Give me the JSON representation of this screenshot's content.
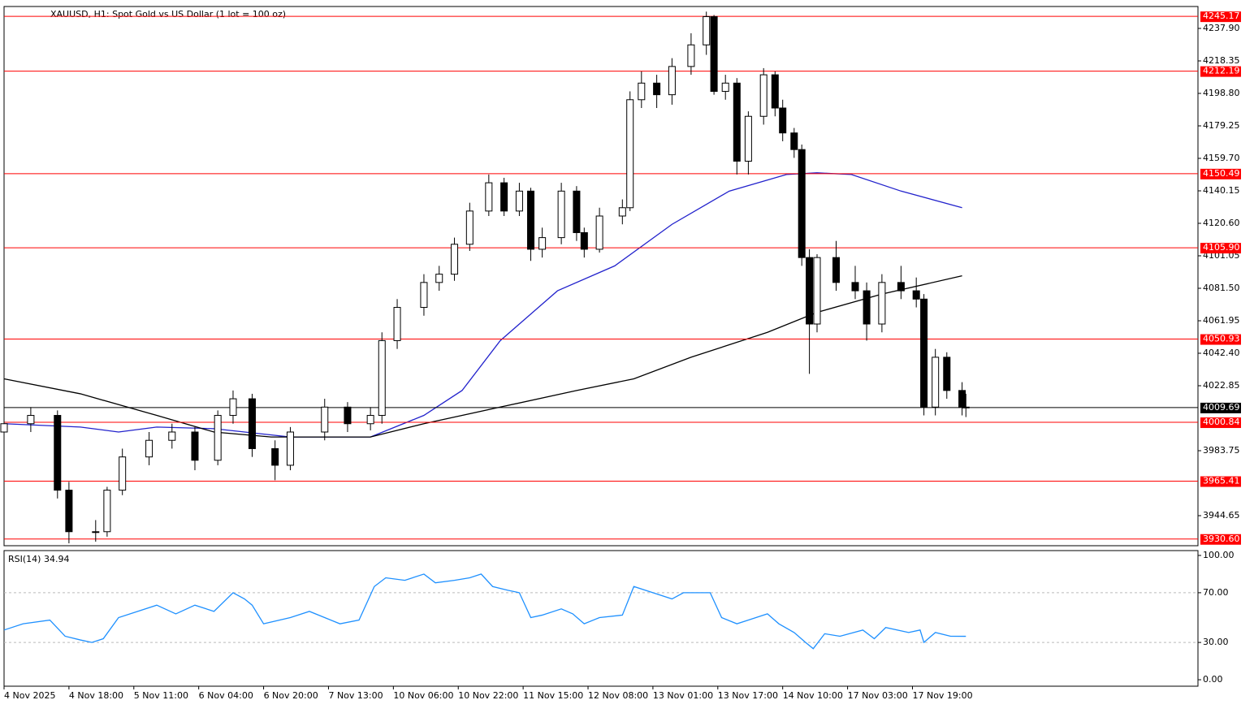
{
  "chart_data": {
    "type": "candlestick",
    "title": "XAUUSD, H1:  Spot Gold vs US Dollar (1 lot = 100 oz)",
    "xlim": [
      0,
      312.8
    ],
    "xticks": [
      {
        "value": 0,
        "label": "4 Nov 2025"
      },
      {
        "value": 17,
        "label": "4 Nov 18:00"
      },
      {
        "value": 34,
        "label": "5 Nov 11:00"
      },
      {
        "value": 51,
        "label": "6 Nov 04:00"
      },
      {
        "value": 68,
        "label": "6 Nov 20:00"
      },
      {
        "value": 85,
        "label": "7 Nov 13:00"
      },
      {
        "value": 102,
        "label": "10 Nov 06:00"
      },
      {
        "value": 119,
        "label": "10 Nov 22:00"
      },
      {
        "value": 136,
        "label": "11 Nov 15:00"
      },
      {
        "value": 153,
        "label": "12 Nov 08:00"
      },
      {
        "value": 170,
        "label": "13 Nov 01:00"
      },
      {
        "value": 187,
        "label": "13 Nov 17:00"
      },
      {
        "value": 204,
        "label": "14 Nov 10:00"
      },
      {
        "value": 221,
        "label": "17 Nov 03:00"
      },
      {
        "value": 238,
        "label": "17 Nov 19:00"
      }
    ],
    "ylim": [
      3926.57,
      4251.1
    ],
    "yticks": [
      {
        "value": 4237.9,
        "label": "4237.90"
      },
      {
        "value": 4218.35,
        "label": "4218.35"
      },
      {
        "value": 4198.8,
        "label": "4198.80"
      },
      {
        "value": 4179.25,
        "label": "4179.25"
      },
      {
        "value": 4159.7,
        "label": "4159.70"
      },
      {
        "value": 4140.15,
        "label": "4140.15"
      },
      {
        "value": 4120.6,
        "label": "4120.60"
      },
      {
        "value": 4101.05,
        "label": "4101.05"
      },
      {
        "value": 4081.5,
        "label": "4081.50"
      },
      {
        "value": 4061.95,
        "label": "4061.95"
      },
      {
        "value": 4042.4,
        "label": "4042.40"
      },
      {
        "value": 4022.85,
        "label": "4022.85"
      },
      {
        "value": 3983.75,
        "label": "3983.75"
      },
      {
        "value": 3944.65,
        "label": "3944.65"
      }
    ],
    "x": [
      0,
      7,
      14,
      17,
      24,
      27,
      31,
      38,
      44,
      50,
      56,
      60,
      65,
      71,
      75,
      84,
      90,
      96,
      99,
      103,
      110,
      114,
      118,
      122,
      127,
      131,
      135,
      138,
      141,
      146,
      150,
      152,
      156,
      162,
      164,
      167,
      171,
      175,
      180,
      184,
      186,
      189,
      192,
      195,
      199,
      202,
      204,
      207,
      209,
      211,
      213,
      218,
      223,
      226,
      230,
      235,
      239,
      241,
      244,
      247,
      251,
      252
    ],
    "open": [
      3995,
      4000,
      4005,
      3960,
      3935,
      3935,
      3960,
      3980,
      3990,
      3995,
      3978,
      4005,
      4015,
      3985,
      3975,
      3995,
      4010,
      4000,
      4005,
      4050,
      4070,
      4085,
      4090,
      4108,
      4128,
      4145,
      4128,
      4140,
      4105,
      4112,
      4140,
      4115,
      4105,
      4125,
      4130,
      4195,
      4205,
      4198,
      4215,
      4228,
      4245,
      4200,
      4205,
      4158,
      4185,
      4210,
      4190,
      4175,
      4165,
      4100,
      4060,
      4100,
      4085,
      4080,
      4060,
      4085,
      4080,
      4075,
      4010,
      4040,
      4020,
      4010
    ],
    "high": [
      4006,
      4010,
      4008,
      3965,
      3942,
      3962,
      3985,
      3995,
      4000,
      3998,
      4008,
      4020,
      4018,
      3990,
      3998,
      4015,
      4013,
      4010,
      4055,
      4075,
      4090,
      4095,
      4112,
      4133,
      4150,
      4148,
      4145,
      4142,
      4118,
      4145,
      4143,
      4118,
      4130,
      4135,
      4200,
      4212,
      4210,
      4220,
      4235,
      4248,
      4246,
      4210,
      4208,
      4188,
      4214,
      4212,
      4195,
      4178,
      4168,
      4105,
      4102,
      4110,
      4095,
      4085,
      4090,
      4095,
      4088,
      4078,
      4045,
      4043,
      4025,
      4018
    ],
    "low": [
      3990,
      3995,
      3955,
      3928,
      3929,
      3932,
      3957,
      3975,
      3985,
      3972,
      3975,
      4000,
      3980,
      3966,
      3972,
      3990,
      3995,
      3996,
      4000,
      4045,
      4065,
      4080,
      4086,
      4104,
      4125,
      4125,
      4125,
      4098,
      4100,
      4108,
      4110,
      4100,
      4103,
      4120,
      4128,
      4190,
      4190,
      4192,
      4210,
      4222,
      4198,
      4195,
      4150,
      4150,
      4180,
      4185,
      4170,
      4160,
      4095,
      4030,
      4055,
      4080,
      4075,
      4050,
      4055,
      4075,
      4070,
      4005,
      4005,
      4015,
      4005,
      4004
    ],
    "close": [
      4000,
      4005,
      3960,
      3935,
      3935,
      3960,
      3980,
      3990,
      3995,
      3978,
      4005,
      4015,
      3985,
      3975,
      3995,
      4010,
      4000,
      4005,
      4050,
      4070,
      4085,
      4090,
      4108,
      4128,
      4145,
      4128,
      4140,
      4105,
      4112,
      4140,
      4115,
      4105,
      4125,
      4130,
      4195,
      4205,
      4198,
      4215,
      4228,
      4245,
      4200,
      4205,
      4158,
      4185,
      4210,
      4190,
      4175,
      4165,
      4100,
      4060,
      4100,
      4085,
      4080,
      4060,
      4085,
      4080,
      4075,
      4010,
      4040,
      4020,
      4010,
      4009.69
    ],
    "lines": [
      {
        "color": "#2222cc",
        "x": [
          0,
          20,
          30,
          40,
          55,
          75,
          96,
          110,
          120,
          130,
          145,
          160,
          175,
          190,
          205,
          213,
          222,
          235,
          251
        ],
        "values": [
          4000,
          3998,
          3995,
          3998,
          3997,
          3992,
          3992,
          4005,
          4020,
          4050,
          4080,
          4095,
          4120,
          4140,
          4150,
          4151,
          4150,
          4140,
          4130
        ]
      },
      {
        "color": "#000000",
        "x": [
          0,
          20,
          40,
          55,
          70,
          96,
          110,
          130,
          150,
          165,
          180,
          200,
          213,
          230,
          251
        ],
        "values": [
          4027,
          4018,
          4005,
          3995,
          3992,
          3992,
          4000,
          4010,
          4020,
          4027,
          4040,
          4055,
          4067,
          4078,
          4089
        ]
      }
    ],
    "level_color": "#ff0000",
    "levels": [
      4245.17,
      4212.19,
      4150.49,
      {
        "value": 4105.9,
        "label": "4105.90"
      },
      4050.93,
      4000.84,
      3965.41,
      {
        "value": 3930.6,
        "label": "3930.60"
      }
    ],
    "last_price": 4009.69,
    "rsi": {
      "title": "RSI(14) 34.94",
      "color": "#1e90ff",
      "ylim": [
        -5.2,
        103.9
      ],
      "yticks": [
        {
          "value": 100,
          "label": "100.00"
        },
        {
          "value": 70,
          "label": "70.00"
        },
        {
          "value": 30,
          "label": "30.00"
        },
        {
          "value": 0,
          "label": "0.00"
        }
      ],
      "levels": [
        70,
        30
      ],
      "x": [
        0,
        5,
        12,
        16,
        20,
        23,
        26,
        30,
        35,
        40,
        45,
        50,
        55,
        60,
        63,
        65,
        68,
        75,
        80,
        84,
        88,
        93,
        97,
        100,
        105,
        110,
        113,
        118,
        122,
        125,
        128,
        132,
        135,
        138,
        141,
        146,
        149,
        152,
        156,
        162,
        165,
        170,
        175,
        178,
        185,
        188,
        192,
        197,
        200,
        203,
        207,
        210,
        212,
        215,
        219,
        225,
        228,
        231,
        237,
        240,
        241,
        244,
        248,
        252
      ],
      "values": [
        40,
        45,
        48,
        35,
        32,
        30,
        33,
        50,
        55,
        60,
        53,
        60,
        55,
        70,
        65,
        60,
        45,
        50,
        55,
        50,
        45,
        48,
        75,
        82,
        80,
        85,
        78,
        80,
        82,
        85,
        75,
        72,
        70,
        50,
        52,
        57,
        53,
        45,
        50,
        52,
        75,
        70,
        65,
        70,
        70,
        50,
        45,
        50,
        53,
        45,
        38,
        30,
        25,
        37,
        35,
        40,
        33,
        42,
        38,
        40,
        30,
        38,
        35,
        34.94
      ]
    }
  }
}
